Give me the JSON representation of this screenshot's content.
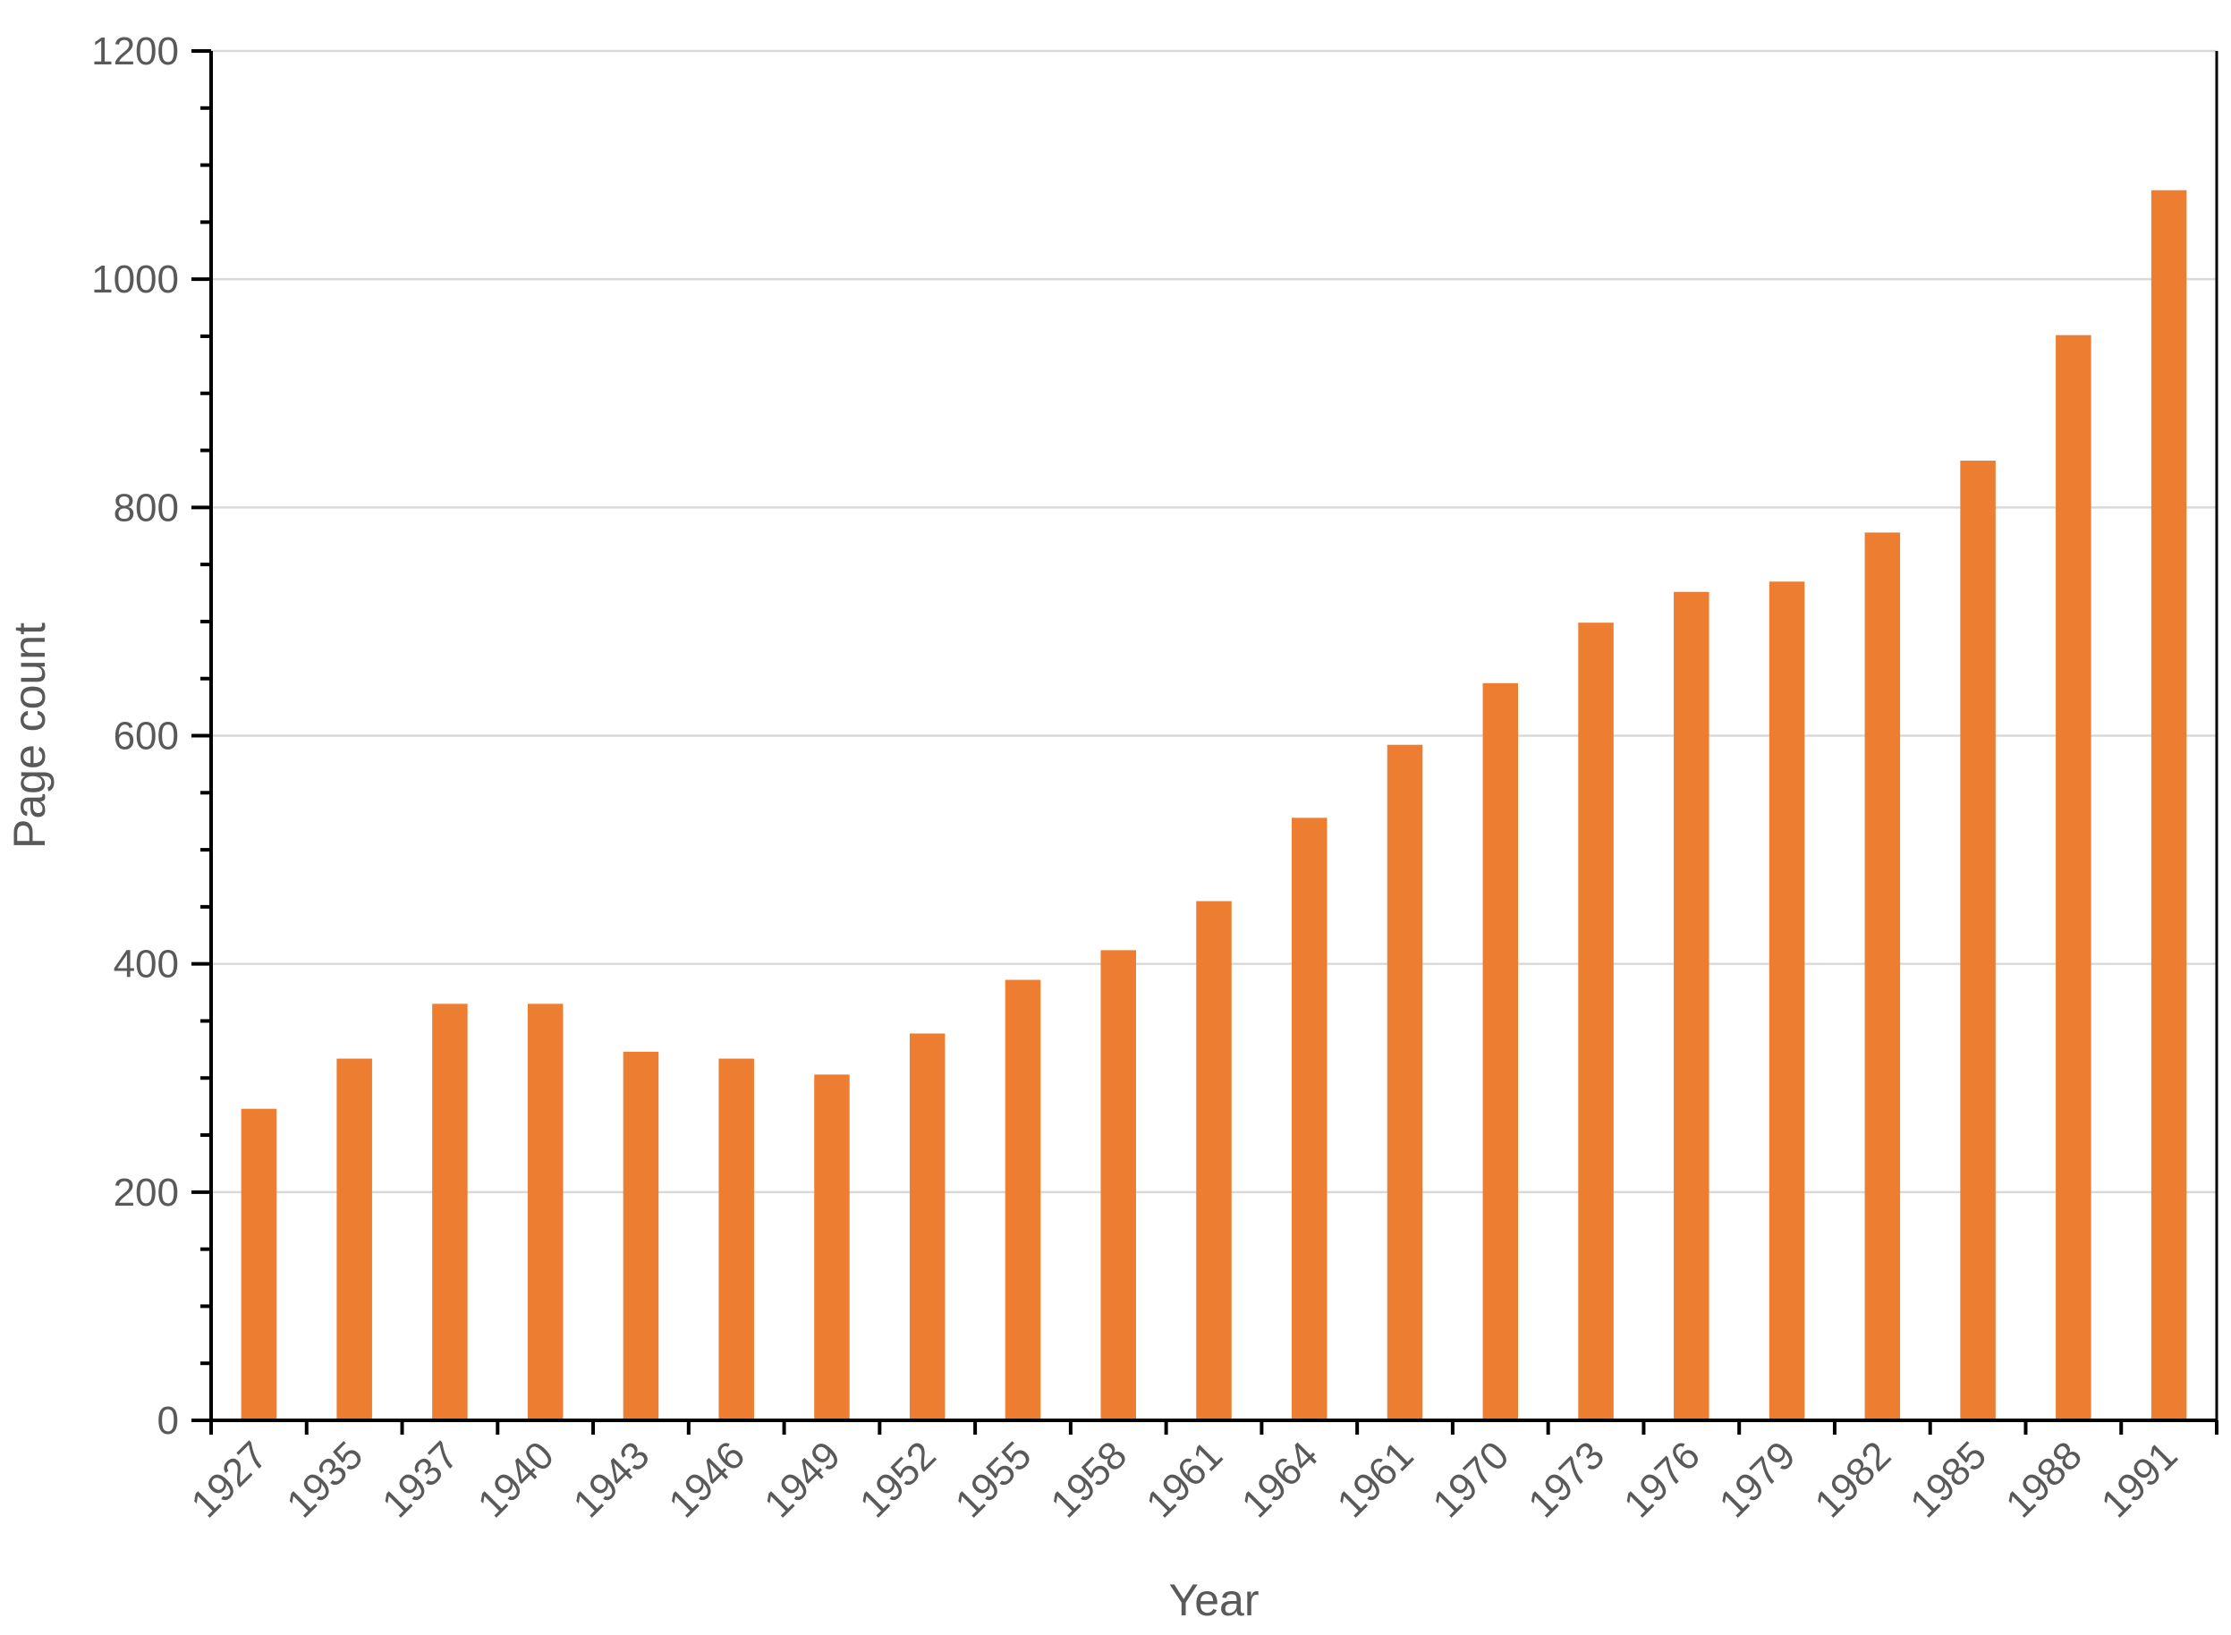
{
  "chart_data": {
    "type": "bar",
    "title": "",
    "xlabel": "Year",
    "ylabel": "Page count",
    "categories": [
      "1927",
      "1935",
      "1937",
      "1940",
      "1943",
      "1946",
      "1949",
      "1952",
      "1955",
      "1958",
      "1961",
      "1964",
      "1961",
      "1970",
      "1973",
      "1976",
      "1979",
      "1982",
      "1985",
      "1988",
      "1991"
    ],
    "values": [
      273,
      317,
      365,
      365,
      323,
      317,
      303,
      339,
      386,
      412,
      455,
      528,
      592,
      646,
      699,
      726,
      735,
      778,
      841,
      951,
      1078
    ],
    "ylim": [
      0,
      1200
    ],
    "yticks": [
      0,
      200,
      400,
      600,
      800,
      1000,
      1200
    ],
    "grid": true,
    "legend": "none",
    "colors": {
      "bar": "#ED7D31",
      "grid": "#D9D9D9",
      "axis": "#000000",
      "text": "#595959"
    }
  }
}
